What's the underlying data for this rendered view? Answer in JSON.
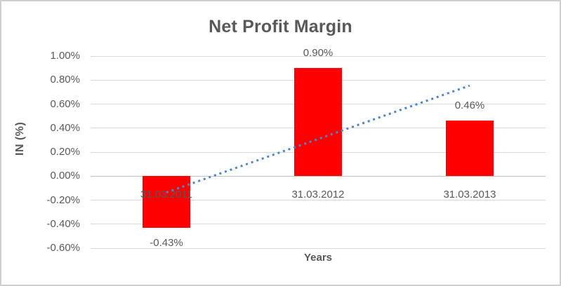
{
  "chart_data": {
    "type": "bar",
    "title": "Net Profit Margin",
    "categories": [
      "31.03.2011",
      "31.03.2012",
      "31.03.2013"
    ],
    "values": [
      -0.43,
      0.9,
      0.46
    ],
    "data_labels": [
      "-0.43%",
      "0.90%",
      "0.46%"
    ],
    "xlabel": "Years",
    "ylabel": "IN (%)",
    "ylim": [
      -0.6,
      1.0
    ],
    "yticks": [
      {
        "value": 1.0,
        "label": "1.00%"
      },
      {
        "value": 0.8,
        "label": "0.80%"
      },
      {
        "value": 0.6,
        "label": "0.60%"
      },
      {
        "value": 0.4,
        "label": "0.40%"
      },
      {
        "value": 0.2,
        "label": "0.20%"
      },
      {
        "value": 0.0,
        "label": "0.00%"
      },
      {
        "value": -0.2,
        "label": "-0.20%"
      },
      {
        "value": -0.4,
        "label": "-0.40%"
      },
      {
        "value": -0.6,
        "label": "-0.60%"
      }
    ],
    "grid": true,
    "legend": "none",
    "bar_color": "#ff0000",
    "trendline": {
      "style": "dotted",
      "color": "#4e87c8",
      "start_value": -0.135,
      "end_value": 0.755
    },
    "colors": {
      "text": "#595959",
      "gridline": "#d9d9d9",
      "axis_line": "#bfbfbf",
      "chart_border": "#d0cece",
      "background": "#ffffff"
    }
  }
}
